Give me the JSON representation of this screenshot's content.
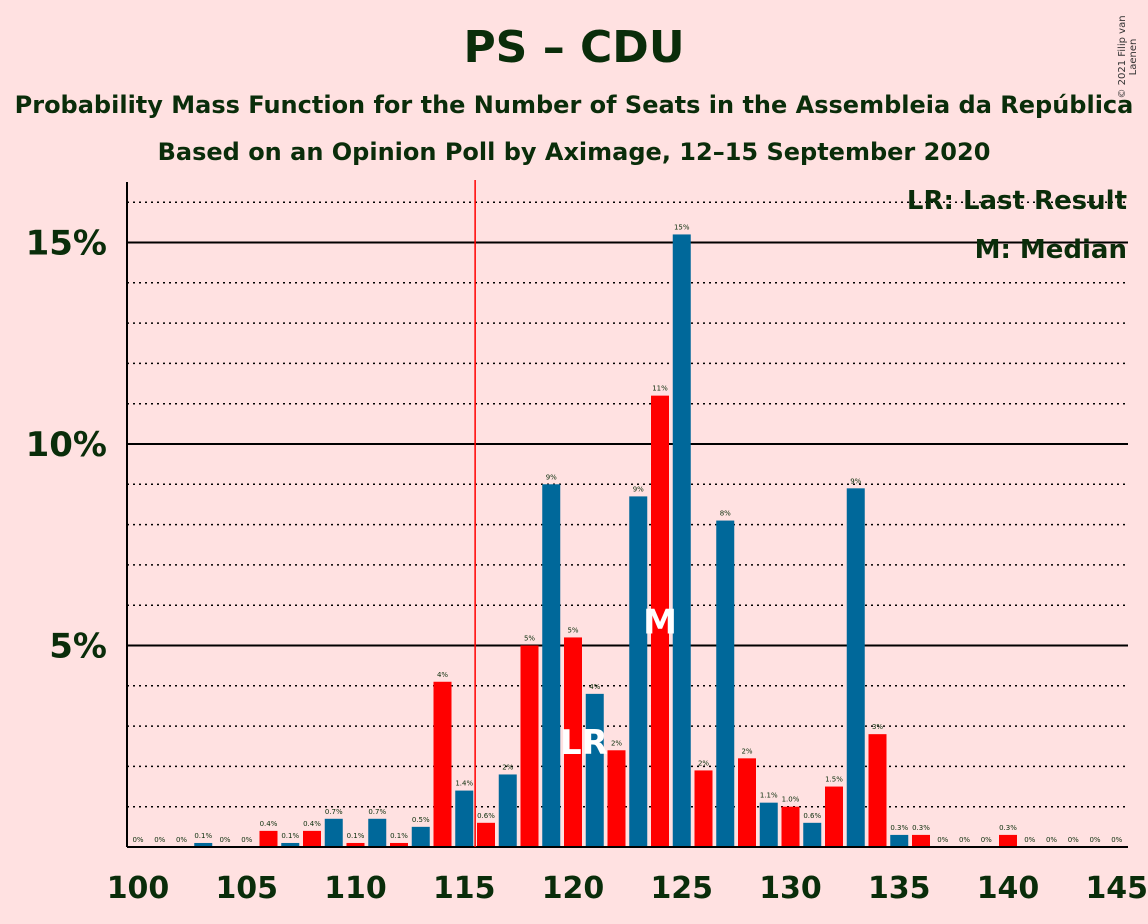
{
  "title": "PS – CDU",
  "subtitle": "Probability Mass Function for the Number of Seats in the Assembleia da República",
  "subtitle2": "Based on an Opinion Poll by Aximage, 12–15 September 2020",
  "copyright": "© 2021 Filip van Laenen",
  "legend": {
    "lr": "LR: Last Result",
    "m": "M: Median"
  },
  "colors": {
    "background": "#FFE1E1",
    "red": "#FF0000",
    "blue": "#00689A",
    "text": "#0A2D0A"
  },
  "chart_data": {
    "type": "bar",
    "xlabel": "",
    "ylabel": "",
    "xlim": [
      100,
      145
    ],
    "ylim": [
      0,
      16.5
    ],
    "x_ticks": [
      100,
      105,
      110,
      115,
      120,
      125,
      130,
      135,
      140,
      145
    ],
    "y_ticks": [
      {
        "value": 5,
        "label": "5%"
      },
      {
        "value": 10,
        "label": "10%"
      },
      {
        "value": 15,
        "label": "15%"
      }
    ],
    "grid": "dotted every 1%, solid at 5% steps",
    "last_result": 116,
    "median": 124,
    "markers": {
      "last_result": "LR",
      "median": "M"
    },
    "seats": [
      100,
      101,
      102,
      103,
      104,
      105,
      106,
      107,
      108,
      109,
      110,
      111,
      112,
      113,
      114,
      115,
      116,
      117,
      118,
      119,
      120,
      121,
      122,
      123,
      124,
      125,
      126,
      127,
      128,
      129,
      130,
      131,
      132,
      133,
      134,
      135,
      136,
      137,
      138,
      139,
      140,
      141,
      142,
      143,
      144,
      145
    ],
    "values": [
      0,
      0,
      0,
      0.1,
      0,
      0,
      0.4,
      0.1,
      0.4,
      0.7,
      0.1,
      0.7,
      0.1,
      0.5,
      4.1,
      1.4,
      0.6,
      1.8,
      5.0,
      9.0,
      5.2,
      3.8,
      2.4,
      8.7,
      11.2,
      15.2,
      1.9,
      8.1,
      2.2,
      1.1,
      1.0,
      0.6,
      1.5,
      8.9,
      2.8,
      0.3,
      0.3,
      0,
      0,
      0,
      0.3,
      0,
      0,
      0,
      0,
      0
    ],
    "labels": [
      "0%",
      "0%",
      "0%",
      "0.1%",
      "0%",
      "0%",
      "0.4%",
      "0.1%",
      "0.4%",
      "0.7%",
      "0.1%",
      "0.7%",
      "0.1%",
      "0.5%",
      "4%",
      "1.4%",
      "0.6%",
      "2%",
      "5%",
      "9%",
      "5%",
      "4%",
      "2%",
      "9%",
      "11%",
      "15%",
      "2%",
      "8%",
      "2%",
      "1.1%",
      "1.0%",
      "0.6%",
      "1.5%",
      "9%",
      "3%",
      "0.3%",
      "0.3%",
      "0%",
      "0%",
      "0%",
      "0.3%",
      "0%",
      "0%",
      "0%",
      "0%",
      "0%"
    ]
  }
}
